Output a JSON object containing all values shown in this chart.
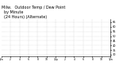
{
  "title": "Milw.   Outdoor Temp / Dew Point\n  by Minute\n  (24 Hours) (Alternate)",
  "title_fontsize": 3.5,
  "background_color": "#ffffff",
  "plot_bg_color": "#ffffff",
  "grid_color": "#bbbbbb",
  "temp_color": "#dd1111",
  "dew_color": "#1111dd",
  "ylim": [
    28,
    68
  ],
  "ytick_vals": [
    30,
    35,
    40,
    45,
    50,
    55,
    60,
    65
  ],
  "xlim": [
    0,
    1440
  ],
  "vgrid_positions": [
    120,
    240,
    360,
    480,
    600,
    720,
    840,
    960,
    1080,
    1200,
    1320
  ],
  "n_points": 1440,
  "dot_size": 0.5,
  "subsample": 4
}
